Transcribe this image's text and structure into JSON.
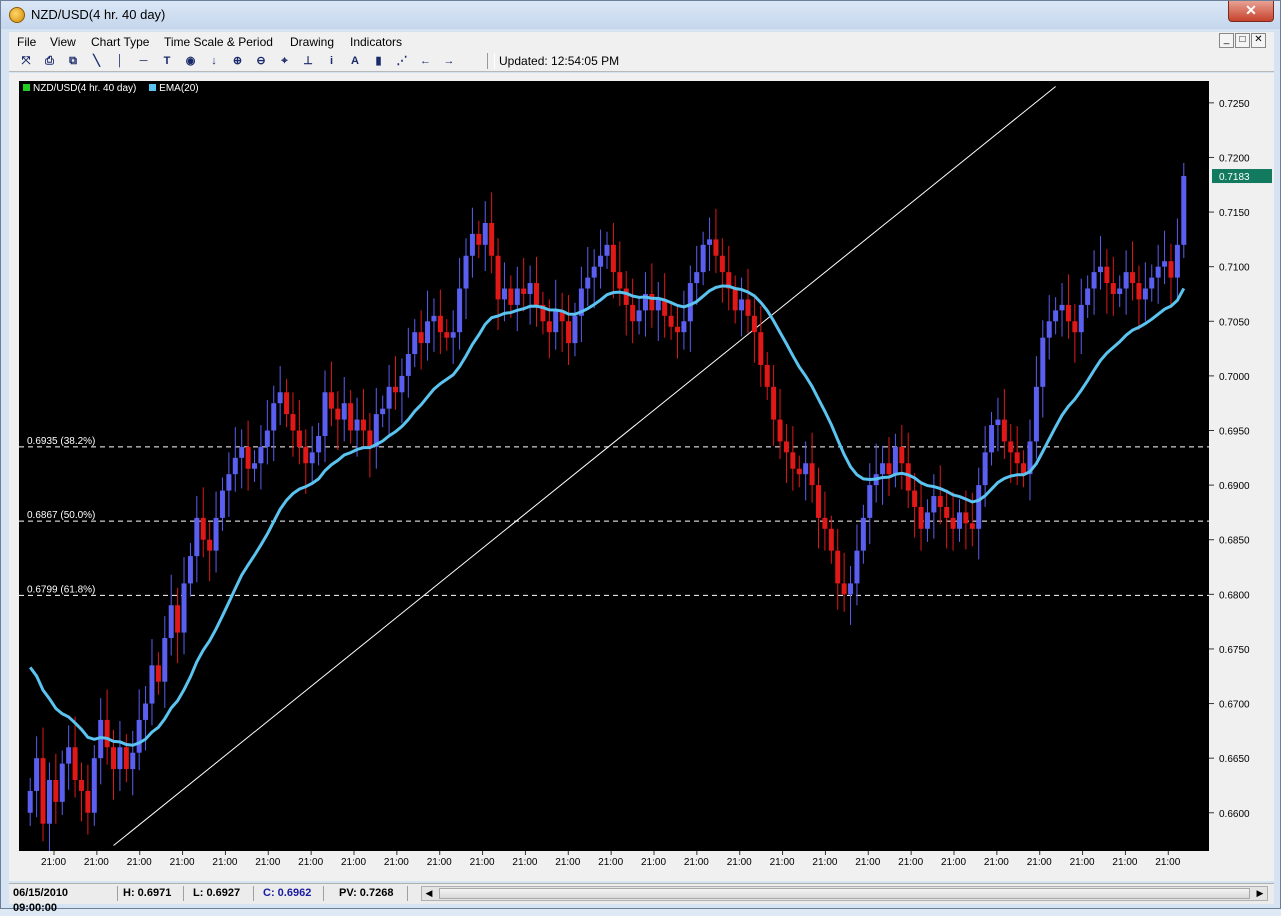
{
  "window": {
    "title": "NZD/USD(4 hr.  40 day)",
    "close_label": "✕",
    "mdi_buttons": [
      "_",
      "□",
      "✕"
    ]
  },
  "menu": [
    "File",
    "View",
    "Chart Type",
    "Time Scale & Period",
    "Drawing",
    "Indicators"
  ],
  "toolbar": {
    "icons": [
      "crosshair-icon",
      "print-icon",
      "copy-icon",
      "trendline-icon",
      "vertical-line-icon",
      "horizontal-line-icon",
      "text-tool-icon",
      "target-icon",
      "arrow-down-icon",
      "zoom-in-icon",
      "zoom-out-icon",
      "fit-icon",
      "anchor-icon",
      "info-icon",
      "font-icon",
      "bar-chart-icon",
      "line-chart-icon",
      "arrow-left-icon",
      "arrow-right-icon"
    ],
    "glyphs": [
      "⤧",
      "⎙",
      "⧉",
      "╲",
      "│",
      "─",
      "T",
      "◉",
      "↓",
      "⊕",
      "⊖",
      "⌖",
      "⊥",
      "i",
      "A",
      "▮",
      "⋰",
      "←",
      "→"
    ],
    "updated_text": "Updated: 12:54:05 PM"
  },
  "legend": [
    {
      "label": "NZD/USD(4 hr.  40 day)",
      "color": "#22cc22"
    },
    {
      "label": "EMA(20)",
      "color": "#5bc3ef"
    }
  ],
  "chart_data": {
    "type": "candlestick",
    "symbol": "NZD/USD",
    "ylim": [
      0.6565,
      0.727
    ],
    "y_ticks": [
      "0.7250",
      "0.7200",
      "0.7150",
      "0.7100",
      "0.7050",
      "0.7000",
      "0.6950",
      "0.6900",
      "0.6850",
      "0.6800",
      "0.6750",
      "0.6700",
      "0.6650",
      "0.6600"
    ],
    "x_ticks": [
      "21:00",
      "21:00",
      "21:00",
      "21:00",
      "21:00",
      "21:00",
      "21:00",
      "21:00",
      "21:00",
      "21:00",
      "21:00",
      "21:00",
      "21:00",
      "21:00",
      "21:00",
      "21:00",
      "21:00",
      "21:00",
      "21:00",
      "21:00",
      "21:00",
      "21:00",
      "21:00",
      "21:00",
      "21:00",
      "21:00",
      "21:00"
    ],
    "current_price": "0.7183",
    "colors": {
      "up": "#5a5ff0",
      "down": "#e01818",
      "ema": "#5bc3ef",
      "fib": "#ffffff",
      "price_tag": "#127a5e"
    },
    "fib_levels": [
      {
        "value": 0.6935,
        "label": "0.6935 (38.2%)"
      },
      {
        "value": 0.6867,
        "label": "0.6867 (50.0%)"
      },
      {
        "value": 0.6799,
        "label": "0.6799 (61.8%)"
      }
    ],
    "trendline": {
      "from": [
        13,
        0.657
      ],
      "to": [
        160,
        0.7265
      ]
    },
    "closes": [
      0.662,
      0.665,
      0.659,
      0.663,
      0.661,
      0.6645,
      0.666,
      0.663,
      0.662,
      0.66,
      0.665,
      0.6685,
      0.666,
      0.664,
      0.666,
      0.664,
      0.6655,
      0.6685,
      0.67,
      0.6735,
      0.672,
      0.676,
      0.679,
      0.6765,
      0.681,
      0.6835,
      0.687,
      0.685,
      0.684,
      0.687,
      0.6895,
      0.691,
      0.6925,
      0.6935,
      0.6915,
      0.692,
      0.6935,
      0.695,
      0.6975,
      0.6985,
      0.6965,
      0.695,
      0.6935,
      0.692,
      0.693,
      0.6945,
      0.6985,
      0.697,
      0.696,
      0.6975,
      0.695,
      0.696,
      0.695,
      0.6935,
      0.6965,
      0.697,
      0.699,
      0.6985,
      0.7,
      0.702,
      0.704,
      0.703,
      0.705,
      0.7055,
      0.704,
      0.7035,
      0.704,
      0.708,
      0.711,
      0.713,
      0.712,
      0.714,
      0.711,
      0.707,
      0.708,
      0.7065,
      0.708,
      0.7075,
      0.7085,
      0.7065,
      0.705,
      0.704,
      0.706,
      0.705,
      0.703,
      0.7055,
      0.708,
      0.709,
      0.71,
      0.711,
      0.712,
      0.7095,
      0.708,
      0.7065,
      0.705,
      0.706,
      0.7075,
      0.706,
      0.707,
      0.7055,
      0.7045,
      0.704,
      0.705,
      0.7085,
      0.7095,
      0.712,
      0.7125,
      0.711,
      0.7095,
      0.708,
      0.706,
      0.707,
      0.7055,
      0.704,
      0.701,
      0.699,
      0.696,
      0.694,
      0.693,
      0.6915,
      0.691,
      0.692,
      0.69,
      0.687,
      0.686,
      0.684,
      0.681,
      0.68,
      0.681,
      0.684,
      0.687,
      0.69,
      0.691,
      0.692,
      0.691,
      0.6935,
      0.692,
      0.6895,
      0.688,
      0.686,
      0.6875,
      0.689,
      0.688,
      0.687,
      0.686,
      0.6875,
      0.6865,
      0.686,
      0.69,
      0.693,
      0.6955,
      0.696,
      0.694,
      0.693,
      0.692,
      0.691,
      0.694,
      0.699,
      0.7035,
      0.705,
      0.706,
      0.7065,
      0.705,
      0.704,
      0.7065,
      0.708,
      0.7095,
      0.71,
      0.7085,
      0.7075,
      0.708,
      0.7095,
      0.7085,
      0.707,
      0.708,
      0.709,
      0.71,
      0.7105,
      0.709,
      0.712,
      0.7183
    ]
  },
  "status": {
    "datetime": "06/15/2010 09:00:00",
    "high": "H: 0.6971",
    "low": "L: 0.6927",
    "close": "C: 0.6962",
    "pv": "PV: 0.7268"
  }
}
